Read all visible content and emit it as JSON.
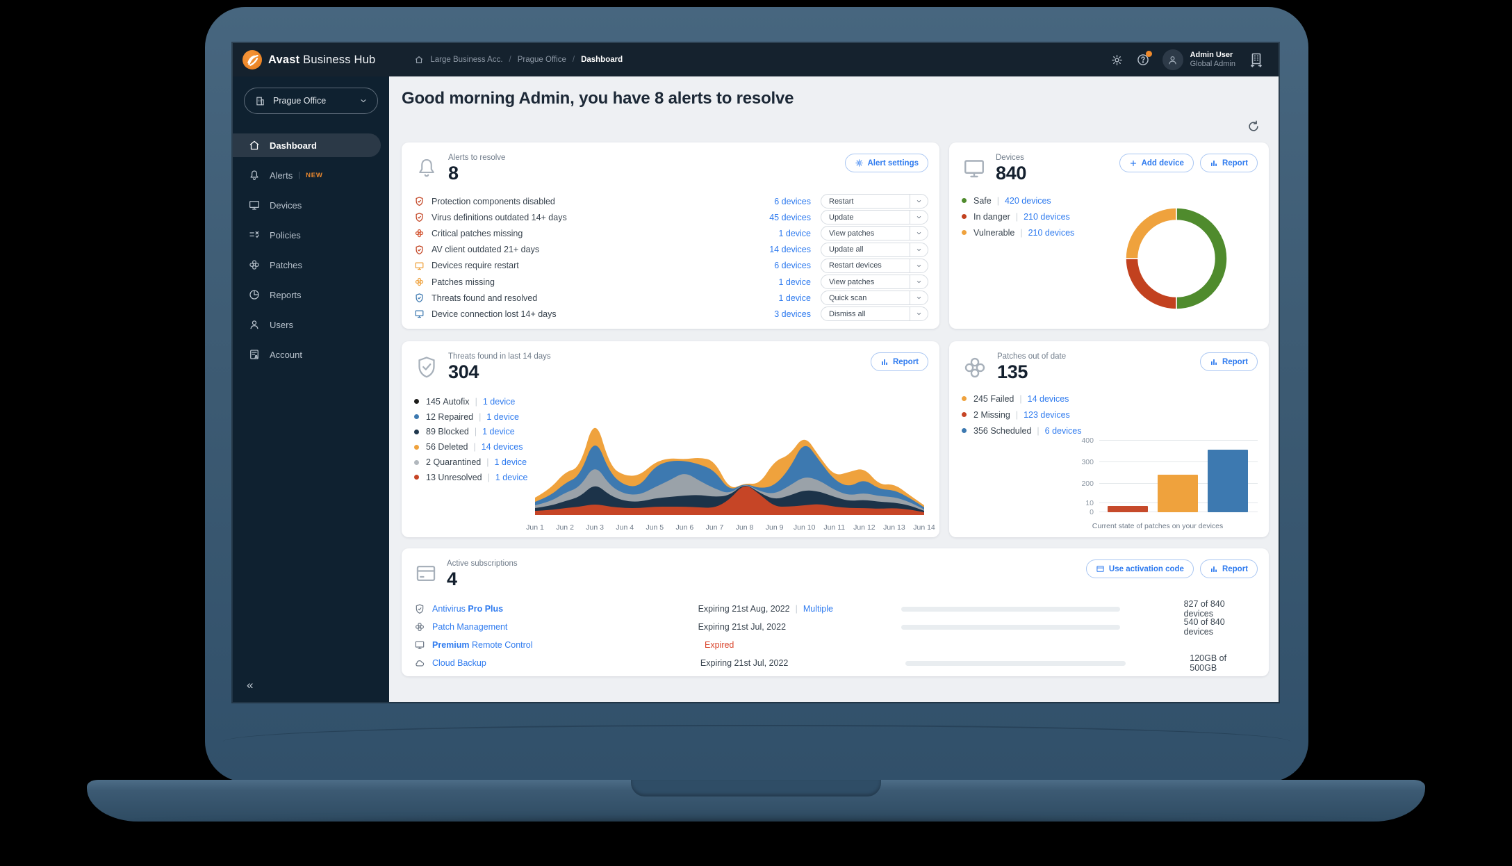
{
  "ui": {
    "pipe": "|",
    "slash": "/"
  },
  "topbar": {
    "logo_bold": "Avast",
    "logo_regular": "Business Hub",
    "breadcrumb": [
      "Large Business Acc.",
      "Prague Office",
      "Dashboard"
    ],
    "user_name": "Admin User",
    "user_role": "Global Admin"
  },
  "sidebar": {
    "site_selector": "Prague Office",
    "items": [
      {
        "label": "Dashboard"
      },
      {
        "label": "Alerts",
        "badge": "NEW"
      },
      {
        "label": "Devices"
      },
      {
        "label": "Policies"
      },
      {
        "label": "Patches"
      },
      {
        "label": "Reports"
      },
      {
        "label": "Users"
      },
      {
        "label": "Account"
      }
    ],
    "collapse_glyph": "«"
  },
  "main": {
    "greeting": "Good morning Admin, you have 8 alerts to resolve",
    "alerts_card": {
      "label": "Alerts to resolve",
      "value": "8",
      "settings_button": "Alert settings",
      "rows": [
        {
          "label": "Protection components disabled",
          "devices": "6 devices",
          "action": "Restart"
        },
        {
          "label": "Virus definitions outdated 14+ days",
          "devices": "45 devices",
          "action": "Update"
        },
        {
          "label": "Critical patches missing",
          "devices": "1 device",
          "action": "View patches"
        },
        {
          "label": "AV client outdated 21+ days",
          "devices": "14 devices",
          "action": "Update all"
        },
        {
          "label": "Devices require restart",
          "devices": "6 devices",
          "action": "Restart devices"
        },
        {
          "label": "Patches missing",
          "devices": "1 device",
          "action": "View patches"
        },
        {
          "label": "Threats found and resolved",
          "devices": "1 device",
          "action": "Quick scan"
        },
        {
          "label": "Device connection lost 14+ days",
          "devices": "3 devices",
          "action": "Dismiss all"
        }
      ]
    },
    "devices_card": {
      "label": "Devices",
      "value": "840",
      "add_button": "Add device",
      "report_button": "Report",
      "legend": [
        {
          "label": "Safe",
          "devices": "420 devices",
          "color": "#4f8b2d"
        },
        {
          "label": "In danger",
          "devices": "210 devices",
          "color": "#c2411f"
        },
        {
          "label": "Vulnerable",
          "devices": "210 devices",
          "color": "#efa23d"
        }
      ]
    },
    "threats_card": {
      "label": "Threats found in last 14 days",
      "value": "304",
      "report_button": "Report",
      "legend": [
        {
          "count": "145",
          "label": "Autofix",
          "devices": "1 device",
          "color": "#1d1d1b"
        },
        {
          "count": "12",
          "label": "Repaired",
          "devices": "1 device",
          "color": "#3d79b0"
        },
        {
          "count": "89",
          "label": "Blocked",
          "devices": "1 device",
          "color": "#20374d"
        },
        {
          "count": "56",
          "label": "Deleted",
          "devices": "14 devices",
          "color": "#efa23d"
        },
        {
          "count": "2",
          "label": "Quarantined",
          "devices": "1 device",
          "color": "#b2b8be"
        },
        {
          "count": "13",
          "label": "Unresolved",
          "devices": "1 device",
          "color": "#c64526"
        }
      ]
    },
    "patches_card": {
      "label": "Patches out of date",
      "value": "135",
      "report_button": "Report",
      "legend": [
        {
          "count": "245",
          "label": "Failed",
          "devices": "14 devices",
          "color": "#efa23d"
        },
        {
          "count": "2",
          "label": "Missing",
          "devices": "123 devices",
          "color": "#c64526"
        },
        {
          "count": "356",
          "label": "Scheduled",
          "devices": "6 devices",
          "color": "#3d79b0"
        }
      ],
      "caption": "Current state of patches on your devices"
    },
    "subscriptions_card": {
      "label": "Active subscriptions",
      "value": "4",
      "activation_button": "Use activation code",
      "report_button": "Report",
      "rows": [
        {
          "name_pre": "Antivirus ",
          "name_bold": "Pro Plus",
          "name_post": "",
          "expiry": "Expiring 21st Aug, 2022",
          "extra": "Multiple",
          "progress_pct": 91,
          "usage": "827 of 840 devices"
        },
        {
          "name_pre": "Patch Management",
          "name_bold": "",
          "name_post": "",
          "expiry": "Expiring 21st Jul, 2022",
          "extra": "",
          "progress_pct": 62,
          "usage": "540 of 840 devices"
        },
        {
          "name_pre": "",
          "name_bold": "Premium",
          "name_post": " Remote Control",
          "expiry": "Expired",
          "extra": "",
          "progress_pct": null,
          "usage": ""
        },
        {
          "name_pre": "Cloud Backup",
          "name_bold": "",
          "name_post": "",
          "expiry": "Expiring 21st Jul, 2022",
          "extra": "",
          "progress_pct": 62,
          "usage": "120GB of 500GB"
        }
      ]
    }
  },
  "colors": {
    "accent_blue": "#2f7bef",
    "green": "#4f8b2d",
    "orange": "#efa23d",
    "red": "#c2411f",
    "steel_blue": "#3b76ad"
  },
  "chart_data": [
    {
      "type": "pie",
      "donut": true,
      "title": "Devices by status",
      "categories": [
        "Safe",
        "In danger",
        "Vulnerable"
      ],
      "values": [
        420,
        210,
        210
      ],
      "colors": [
        "#4f8b2d",
        "#c2411f",
        "#efa23d"
      ],
      "start_angle": "top",
      "direction": "clockwise",
      "legend_position": "left"
    },
    {
      "type": "area",
      "stacked": true,
      "title": "Threats found in last 14 days",
      "x": [
        "Jun 1",
        "Jun 2",
        "Jun 3",
        "Jun 4",
        "Jun 5",
        "Jun 6",
        "Jun 7",
        "Jun 8",
        "Jun 9",
        "Jun 10",
        "Jun 11",
        "Jun 12",
        "Jun 13",
        "Jun 14"
      ],
      "samples_per_day": 2,
      "grid": false,
      "yaxis": "hidden",
      "series": [
        {
          "name": "Unresolved",
          "color": "#c64526",
          "values": [
            6,
            7,
            10,
            12,
            16,
            12,
            10,
            10,
            12,
            12,
            12,
            11,
            10,
            22,
            46,
            30,
            12,
            12,
            14,
            16,
            12,
            10,
            10,
            9,
            10,
            8,
            4
          ]
        },
        {
          "name": "Blocked",
          "color": "#1c3349",
          "values": [
            4,
            6,
            10,
            14,
            30,
            16,
            10,
            9,
            12,
            14,
            16,
            18,
            16,
            6,
            0,
            2,
            10,
            16,
            22,
            18,
            14,
            10,
            12,
            10,
            8,
            6,
            2
          ]
        },
        {
          "name": "Quarantined",
          "color": "#9aa2a9",
          "values": [
            4,
            6,
            12,
            14,
            28,
            14,
            10,
            10,
            16,
            24,
            34,
            20,
            12,
            2,
            0,
            2,
            8,
            14,
            20,
            16,
            10,
            8,
            10,
            8,
            8,
            5,
            2
          ]
        },
        {
          "name": "Repaired",
          "color": "#3d79b0",
          "values": [
            5,
            8,
            14,
            16,
            40,
            18,
            12,
            12,
            30,
            28,
            16,
            24,
            26,
            4,
            0,
            4,
            12,
            24,
            52,
            28,
            14,
            12,
            20,
            10,
            10,
            6,
            3
          ]
        },
        {
          "name": "Deleted",
          "color": "#efa23d",
          "values": [
            6,
            10,
            16,
            12,
            30,
            10,
            14,
            16,
            6,
            4,
            2,
            10,
            14,
            2,
            0,
            6,
            36,
            20,
            8,
            6,
            6,
            22,
            16,
            6,
            9,
            4,
            3
          ]
        }
      ]
    },
    {
      "type": "bar",
      "title": "Current state of patches on your devices",
      "categories": [
        "Missing",
        "Failed",
        "Scheduled"
      ],
      "values": [
        2,
        245,
        356
      ],
      "colors": [
        "#c64526",
        "#efa23d",
        "#3d79b0"
      ],
      "yticks": [
        "400",
        "300",
        "200",
        "10",
        "0"
      ],
      "bar_fracs": [
        0.087,
        0.52,
        0.865
      ],
      "grid": true,
      "legend_position": "none"
    }
  ]
}
